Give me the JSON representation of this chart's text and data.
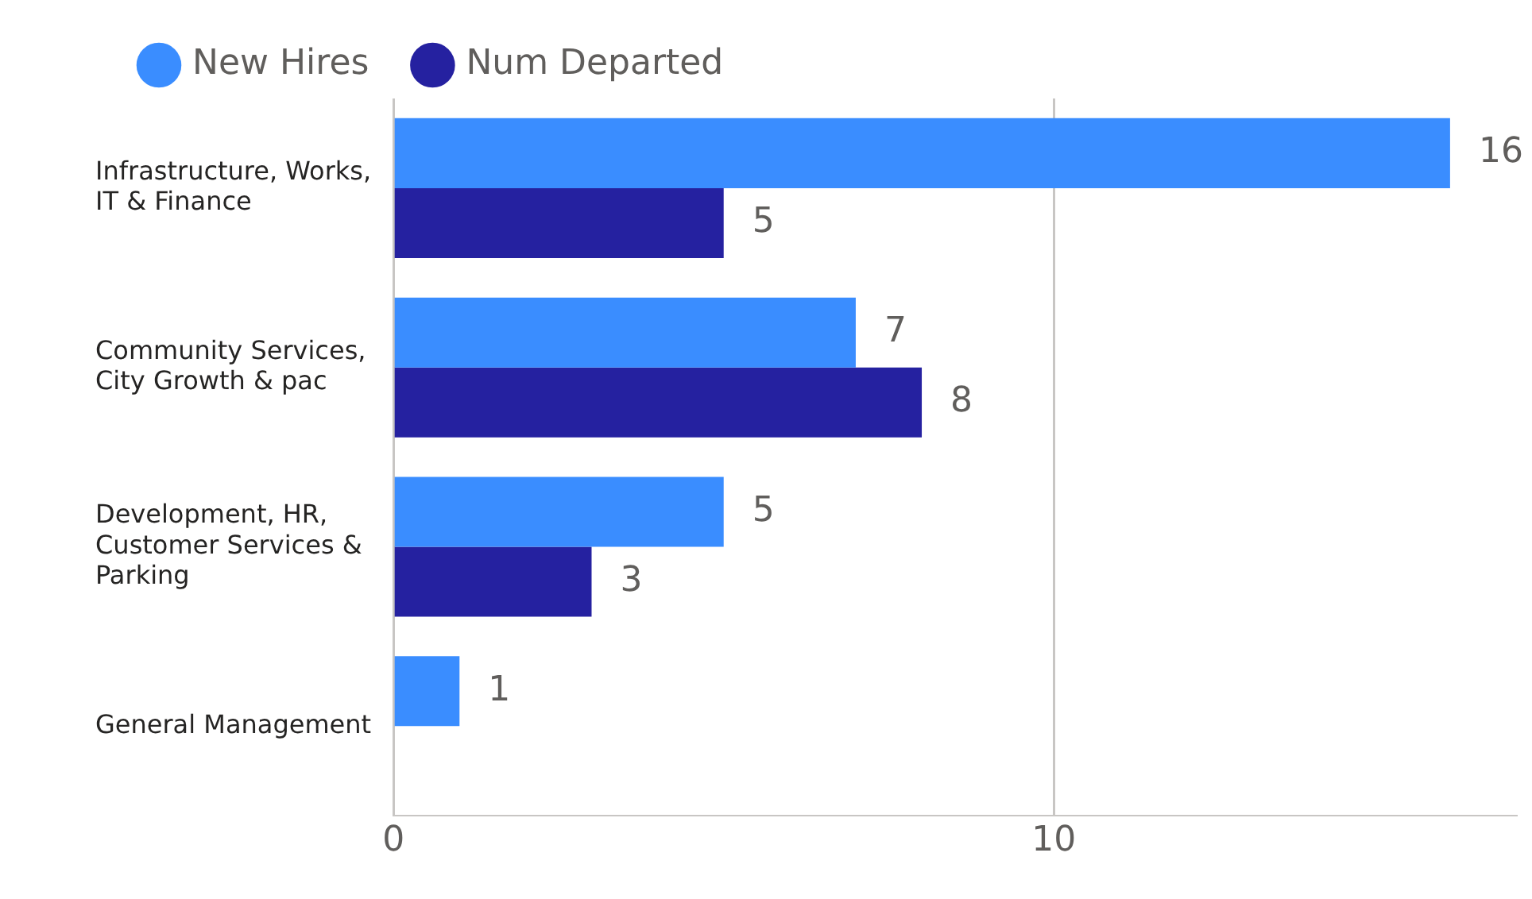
{
  "chart_data": {
    "type": "bar",
    "orientation": "horizontal",
    "categories": [
      "Infrastructure, Works, IT & Finance",
      "Community Services, City Growth & pac",
      "Development, HR, Customer Services & Parking",
      "General Management"
    ],
    "series": [
      {
        "name": "New Hires",
        "color": "#3a8dff",
        "values": [
          16,
          7,
          5,
          1
        ]
      },
      {
        "name": "Num Departed",
        "color": "#2521a0",
        "values": [
          5,
          8,
          3,
          null
        ]
      }
    ],
    "xlim": [
      0,
      17
    ],
    "xticks": [
      0,
      10
    ],
    "grid": "x",
    "legend": "top left",
    "data_labels": true
  }
}
